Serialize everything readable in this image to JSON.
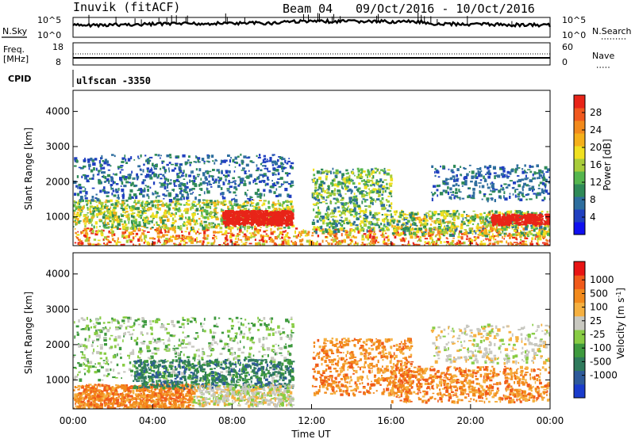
{
  "header": {
    "station": "Inuvik (fitACF)",
    "beam": "Beam 04",
    "dates": "09/Oct/2016 - 10/Oct/2016"
  },
  "strip_noise": {
    "left_label": "N.Sky",
    "right_label": "N.Search",
    "left_ticks": [
      "10^5",
      "10^0"
    ],
    "right_ticks": [
      "10^5",
      "10^0"
    ]
  },
  "strip_freq": {
    "left_label_1": "Freq.",
    "left_label_2": "[MHz]",
    "right_label": "Nave",
    "left_ticks": [
      "18",
      "8"
    ],
    "right_ticks": [
      "60",
      "0"
    ]
  },
  "cpid": {
    "label": "CPID",
    "value": "ulfscan -3350"
  },
  "chart_data": [
    {
      "type": "heatmap",
      "title": "",
      "ylabel": "Slant Range [km]",
      "xlabel": "",
      "ylim": [
        180,
        4600
      ],
      "y_ticks": [
        "1000",
        "2000",
        "3000",
        "4000"
      ],
      "x_ticks": [],
      "colorbar": {
        "label": "Power [dB]",
        "ticks": [
          "4",
          "8",
          "12",
          "16",
          "20",
          "24",
          "28"
        ],
        "colors": [
          "#1010f0",
          "#2040c0",
          "#2e6e9e",
          "#2f8a58",
          "#55b64e",
          "#a8cc3a",
          "#f0e020",
          "#f5b01a",
          "#f28a1c",
          "#f0581e",
          "#e82418"
        ]
      }
    },
    {
      "type": "heatmap",
      "title": "",
      "ylabel": "Slant Range [km]",
      "xlabel": "Time UT",
      "ylim": [
        180,
        4600
      ],
      "y_ticks": [
        "1000",
        "2000",
        "3000",
        "4000"
      ],
      "x_ticks": [
        "00:00",
        "04:00",
        "08:00",
        "12:00",
        "16:00",
        "20:00",
        "00:00"
      ],
      "colorbar": {
        "label": "Velocity [m s",
        "label_exp": "-1",
        "label_end": "]",
        "ticks": [
          "1000",
          "500",
          "100",
          "25",
          "-25",
          "-100",
          "-500",
          "-1000"
        ],
        "colors": [
          "#1a3ccc",
          "#2e5a9a",
          "#2f7a5c",
          "#3e9a3e",
          "#88cc44",
          "#c8c8c0",
          "#f5b040",
          "#f28a1c",
          "#f05a1a",
          "#e81414"
        ]
      }
    }
  ]
}
